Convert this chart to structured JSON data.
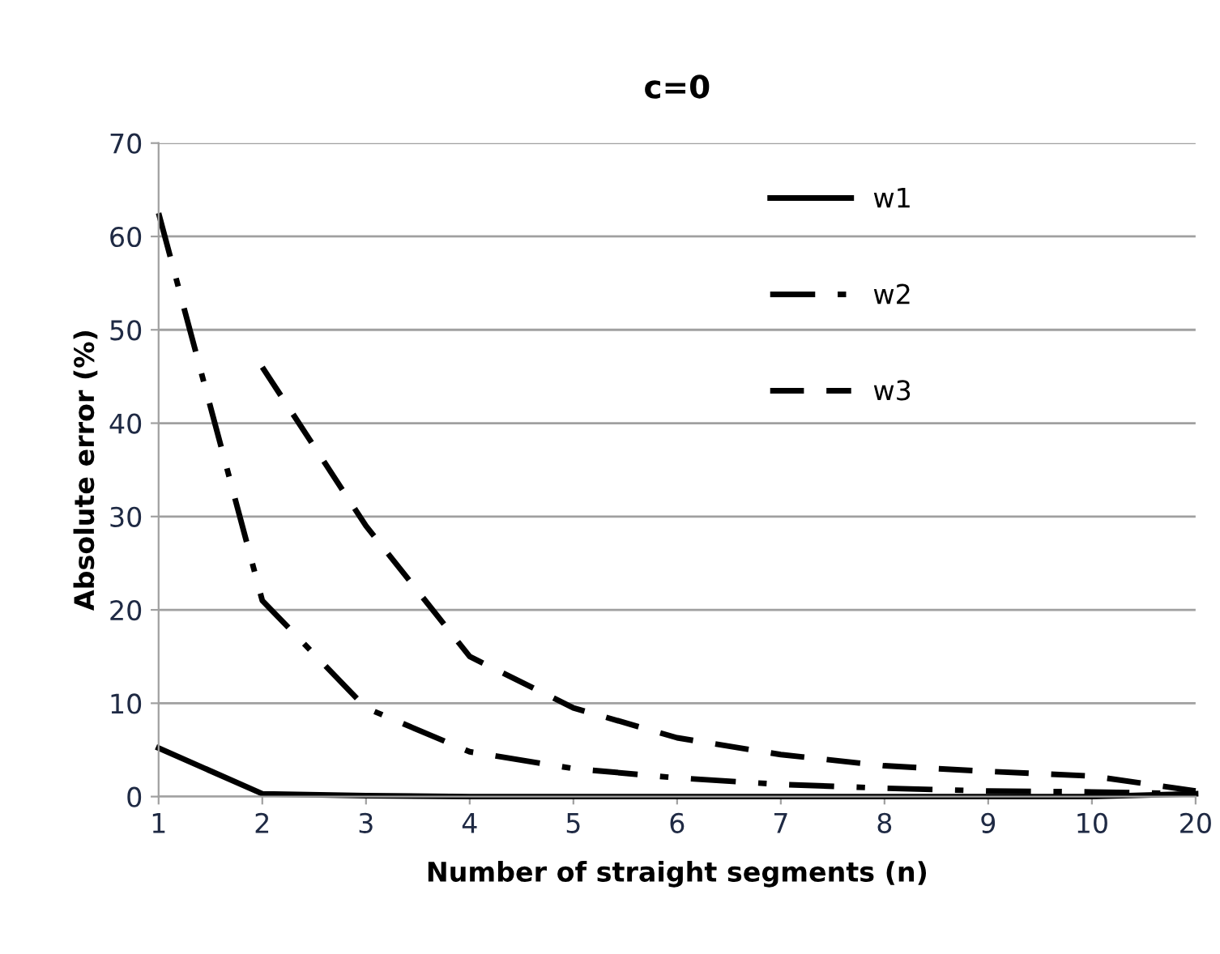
{
  "chart_data": {
    "type": "line",
    "title": "c=0",
    "xlabel": "Number of straight segments (n)",
    "ylabel": "Absolute error (%)",
    "categories": [
      "1",
      "2",
      "3",
      "4",
      "5",
      "6",
      "7",
      "8",
      "9",
      "10",
      "20"
    ],
    "series": [
      {
        "name": "w1",
        "color": "#000000",
        "line_style": "solid",
        "values": [
          5.2,
          0.3,
          0.1,
          0,
          0,
          0,
          0,
          0,
          0,
          0,
          0.3
        ]
      },
      {
        "name": "w2",
        "color": "#000000",
        "line_style": "dashdot",
        "values": [
          62.5,
          21,
          9.5,
          4.8,
          3.0,
          2.0,
          1.3,
          0.9,
          0.6,
          0.5,
          0.3
        ]
      },
      {
        "name": "w3",
        "color": "#000000",
        "line_style": "dashed",
        "values": [
          null,
          46,
          29,
          15,
          9.5,
          6.3,
          4.5,
          3.3,
          2.7,
          2.2,
          0.6
        ]
      }
    ],
    "ylim": [
      0,
      70
    ],
    "yticks": [
      0,
      10,
      20,
      30,
      40,
      50,
      60,
      70
    ],
    "grid": "y",
    "legend": "top right",
    "marker": "none"
  }
}
